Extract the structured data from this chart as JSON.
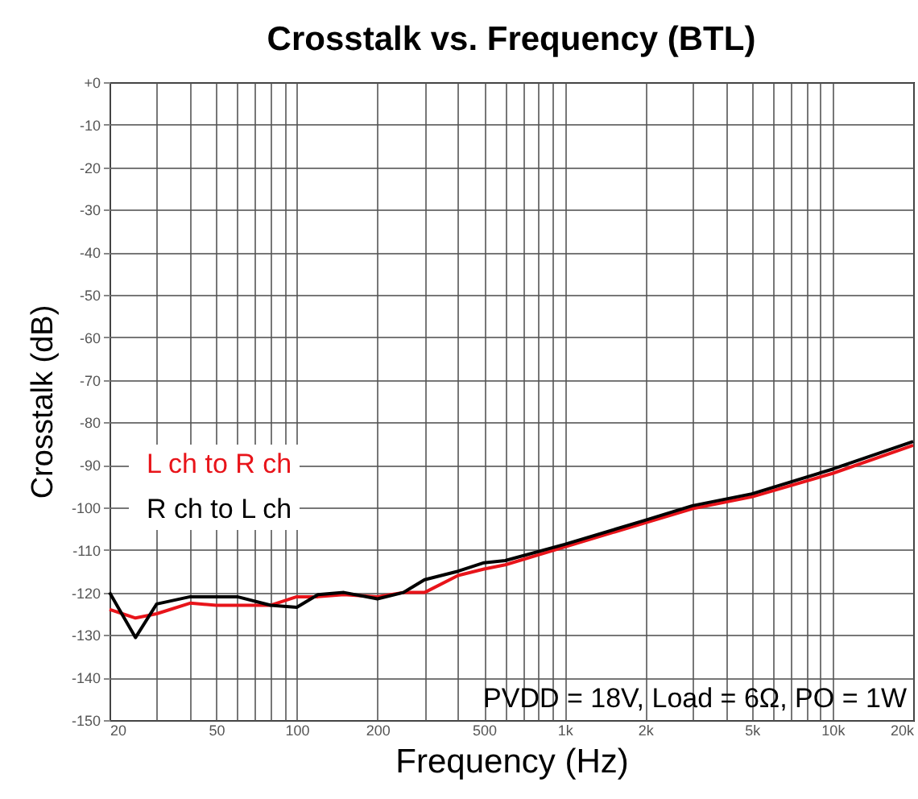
{
  "chart_data": {
    "type": "line",
    "title": "Crosstalk vs. Frequency (BTL)",
    "xlabel": "Frequency (Hz)",
    "ylabel": "Crosstalk (dB)",
    "x": [
      20,
      25,
      30,
      40,
      50,
      60,
      80,
      100,
      120,
      150,
      200,
      250,
      300,
      400,
      500,
      600,
      1000,
      2000,
      3000,
      5000,
      10000,
      20000
    ],
    "series": [
      {
        "name": "L ch to R ch",
        "color": "#e8141a",
        "values": [
          -124,
          -126,
          -125,
          -122.5,
          -123,
          -123,
          -123,
          -121,
          -121,
          -120.5,
          -121,
          -120,
          -120,
          -116,
          -114.5,
          -113.5,
          -109.3,
          -103.6,
          -100.3,
          -97.5,
          -92,
          -85.4
        ]
      },
      {
        "name": "R ch to L ch",
        "color": "#000000",
        "values": [
          -120,
          -130.6,
          -122.7,
          -121,
          -121,
          -121,
          -123,
          -123.5,
          -120.5,
          -120,
          -121.5,
          -120,
          -117,
          -115,
          -113,
          -112.5,
          -108.7,
          -103,
          -99.6,
          -96.8,
          -91,
          -84.5
        ]
      }
    ],
    "log": "x",
    "xlim": [
      20,
      20000
    ],
    "ylim": [
      -150,
      0
    ],
    "xticks": [
      20,
      {
        "value": 30,
        "label": null
      },
      {
        "value": 40,
        "label": null
      },
      50,
      {
        "value": 60,
        "label": null
      },
      {
        "value": 70,
        "label": null
      },
      {
        "value": 80,
        "label": null
      },
      {
        "value": 90,
        "label": null
      },
      100,
      200,
      {
        "value": 300,
        "label": null
      },
      {
        "value": 400,
        "label": null
      },
      500,
      {
        "value": 600,
        "label": null
      },
      {
        "value": 700,
        "label": null
      },
      {
        "value": 800,
        "label": null
      },
      {
        "value": 900,
        "label": null
      },
      {
        "value": 1000,
        "label": "1k"
      },
      {
        "value": 2000,
        "label": "2k"
      },
      {
        "value": 3000,
        "label": null
      },
      {
        "value": 4000,
        "label": null
      },
      {
        "value": 5000,
        "label": "5k"
      },
      {
        "value": 6000,
        "label": null
      },
      {
        "value": 7000,
        "label": null
      },
      {
        "value": 8000,
        "label": null
      },
      {
        "value": 9000,
        "label": null
      },
      {
        "value": 10000,
        "label": "10k"
      },
      {
        "value": 20000,
        "label": "20k"
      }
    ],
    "yticks": [
      {
        "value": 0,
        "label": "+0"
      },
      -10,
      -20,
      -30,
      -40,
      -50,
      -60,
      -70,
      -80,
      -90,
      -100,
      -110,
      -120,
      -130,
      -140,
      -150
    ],
    "grid": true,
    "legend": "left",
    "marker": "none",
    "line_style": "solid",
    "annotations": [
      "PVDD = 18V, Load = 6Ω, PO = 1W"
    ]
  }
}
